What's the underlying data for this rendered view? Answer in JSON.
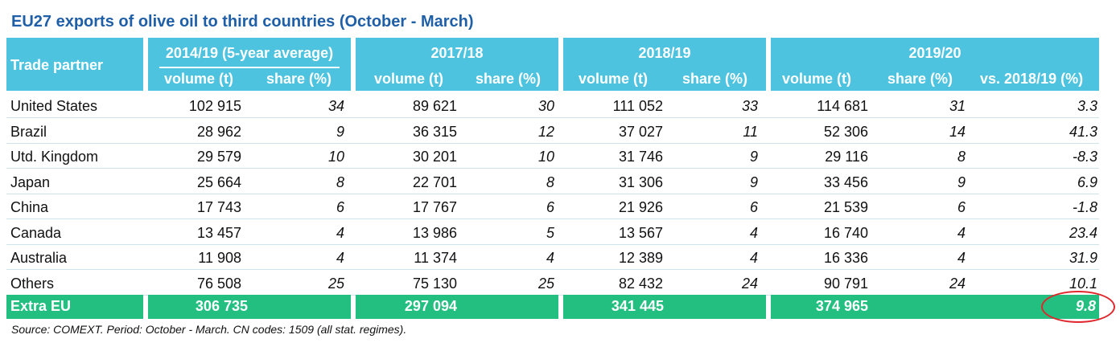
{
  "title": "EU27 exports of olive oil to third countries (October - March)",
  "source": "Source: COMEXT. Period: October - March. CN codes: 1509 (all stat. regimes).",
  "colors": {
    "header": "#4dc3df",
    "total": "#22bf80",
    "title": "#1f5fa8",
    "highlight": "#e0262b"
  },
  "chart_data": {
    "type": "table",
    "title": "EU27 exports of olive oil to third countries (October - March)",
    "header": {
      "partner": "Trade partner",
      "groups": [
        "2014/19 (5-year average)",
        "2017/18",
        "2018/19",
        "2019/20"
      ],
      "sub": [
        "volume (t)",
        "share (%)",
        "volume (t)",
        "share (%)",
        "volume (t)",
        "share (%)",
        "volume (t)",
        "share (%)",
        "vs. 2018/19 (%)"
      ]
    },
    "rows": [
      {
        "partner": "United States",
        "v1419": "102 915",
        "s1419": "34",
        "v1718": "89 621",
        "s1718": "30",
        "v1819": "111 052",
        "s1819": "33",
        "v1920": "114 681",
        "s1920": "31",
        "chg": "3.3"
      },
      {
        "partner": "Brazil",
        "v1419": "28 962",
        "s1419": "9",
        "v1718": "36 315",
        "s1718": "12",
        "v1819": "37 027",
        "s1819": "11",
        "v1920": "52 306",
        "s1920": "14",
        "chg": "41.3"
      },
      {
        "partner": "Utd. Kingdom",
        "v1419": "29 579",
        "s1419": "10",
        "v1718": "30 201",
        "s1718": "10",
        "v1819": "31 746",
        "s1819": "9",
        "v1920": "29 116",
        "s1920": "8",
        "chg": "-8.3"
      },
      {
        "partner": "Japan",
        "v1419": "25 664",
        "s1419": "8",
        "v1718": "22 701",
        "s1718": "8",
        "v1819": "31 306",
        "s1819": "9",
        "v1920": "33 456",
        "s1920": "9",
        "chg": "6.9"
      },
      {
        "partner": "China",
        "v1419": "17 743",
        "s1419": "6",
        "v1718": "17 767",
        "s1718": "6",
        "v1819": "21 926",
        "s1819": "6",
        "v1920": "21 539",
        "s1920": "6",
        "chg": "-1.8"
      },
      {
        "partner": "Canada",
        "v1419": "13 457",
        "s1419": "4",
        "v1718": "13 986",
        "s1718": "5",
        "v1819": "13 567",
        "s1819": "4",
        "v1920": "16 740",
        "s1920": "4",
        "chg": "23.4"
      },
      {
        "partner": "Australia",
        "v1419": "11 908",
        "s1419": "4",
        "v1718": "11 374",
        "s1718": "4",
        "v1819": "12 389",
        "s1819": "4",
        "v1920": "16 336",
        "s1920": "4",
        "chg": "31.9"
      },
      {
        "partner": "Others",
        "v1419": "76 508",
        "s1419": "25",
        "v1718": "75 130",
        "s1718": "25",
        "v1819": "82 432",
        "s1819": "24",
        "v1920": "90 791",
        "s1920": "24",
        "chg": "10.1"
      }
    ],
    "total": {
      "partner": "Extra EU",
      "v1419": "306 735",
      "v1718": "297 094",
      "v1819": "341 445",
      "v1920": "374 965",
      "chg": "9.8"
    }
  }
}
